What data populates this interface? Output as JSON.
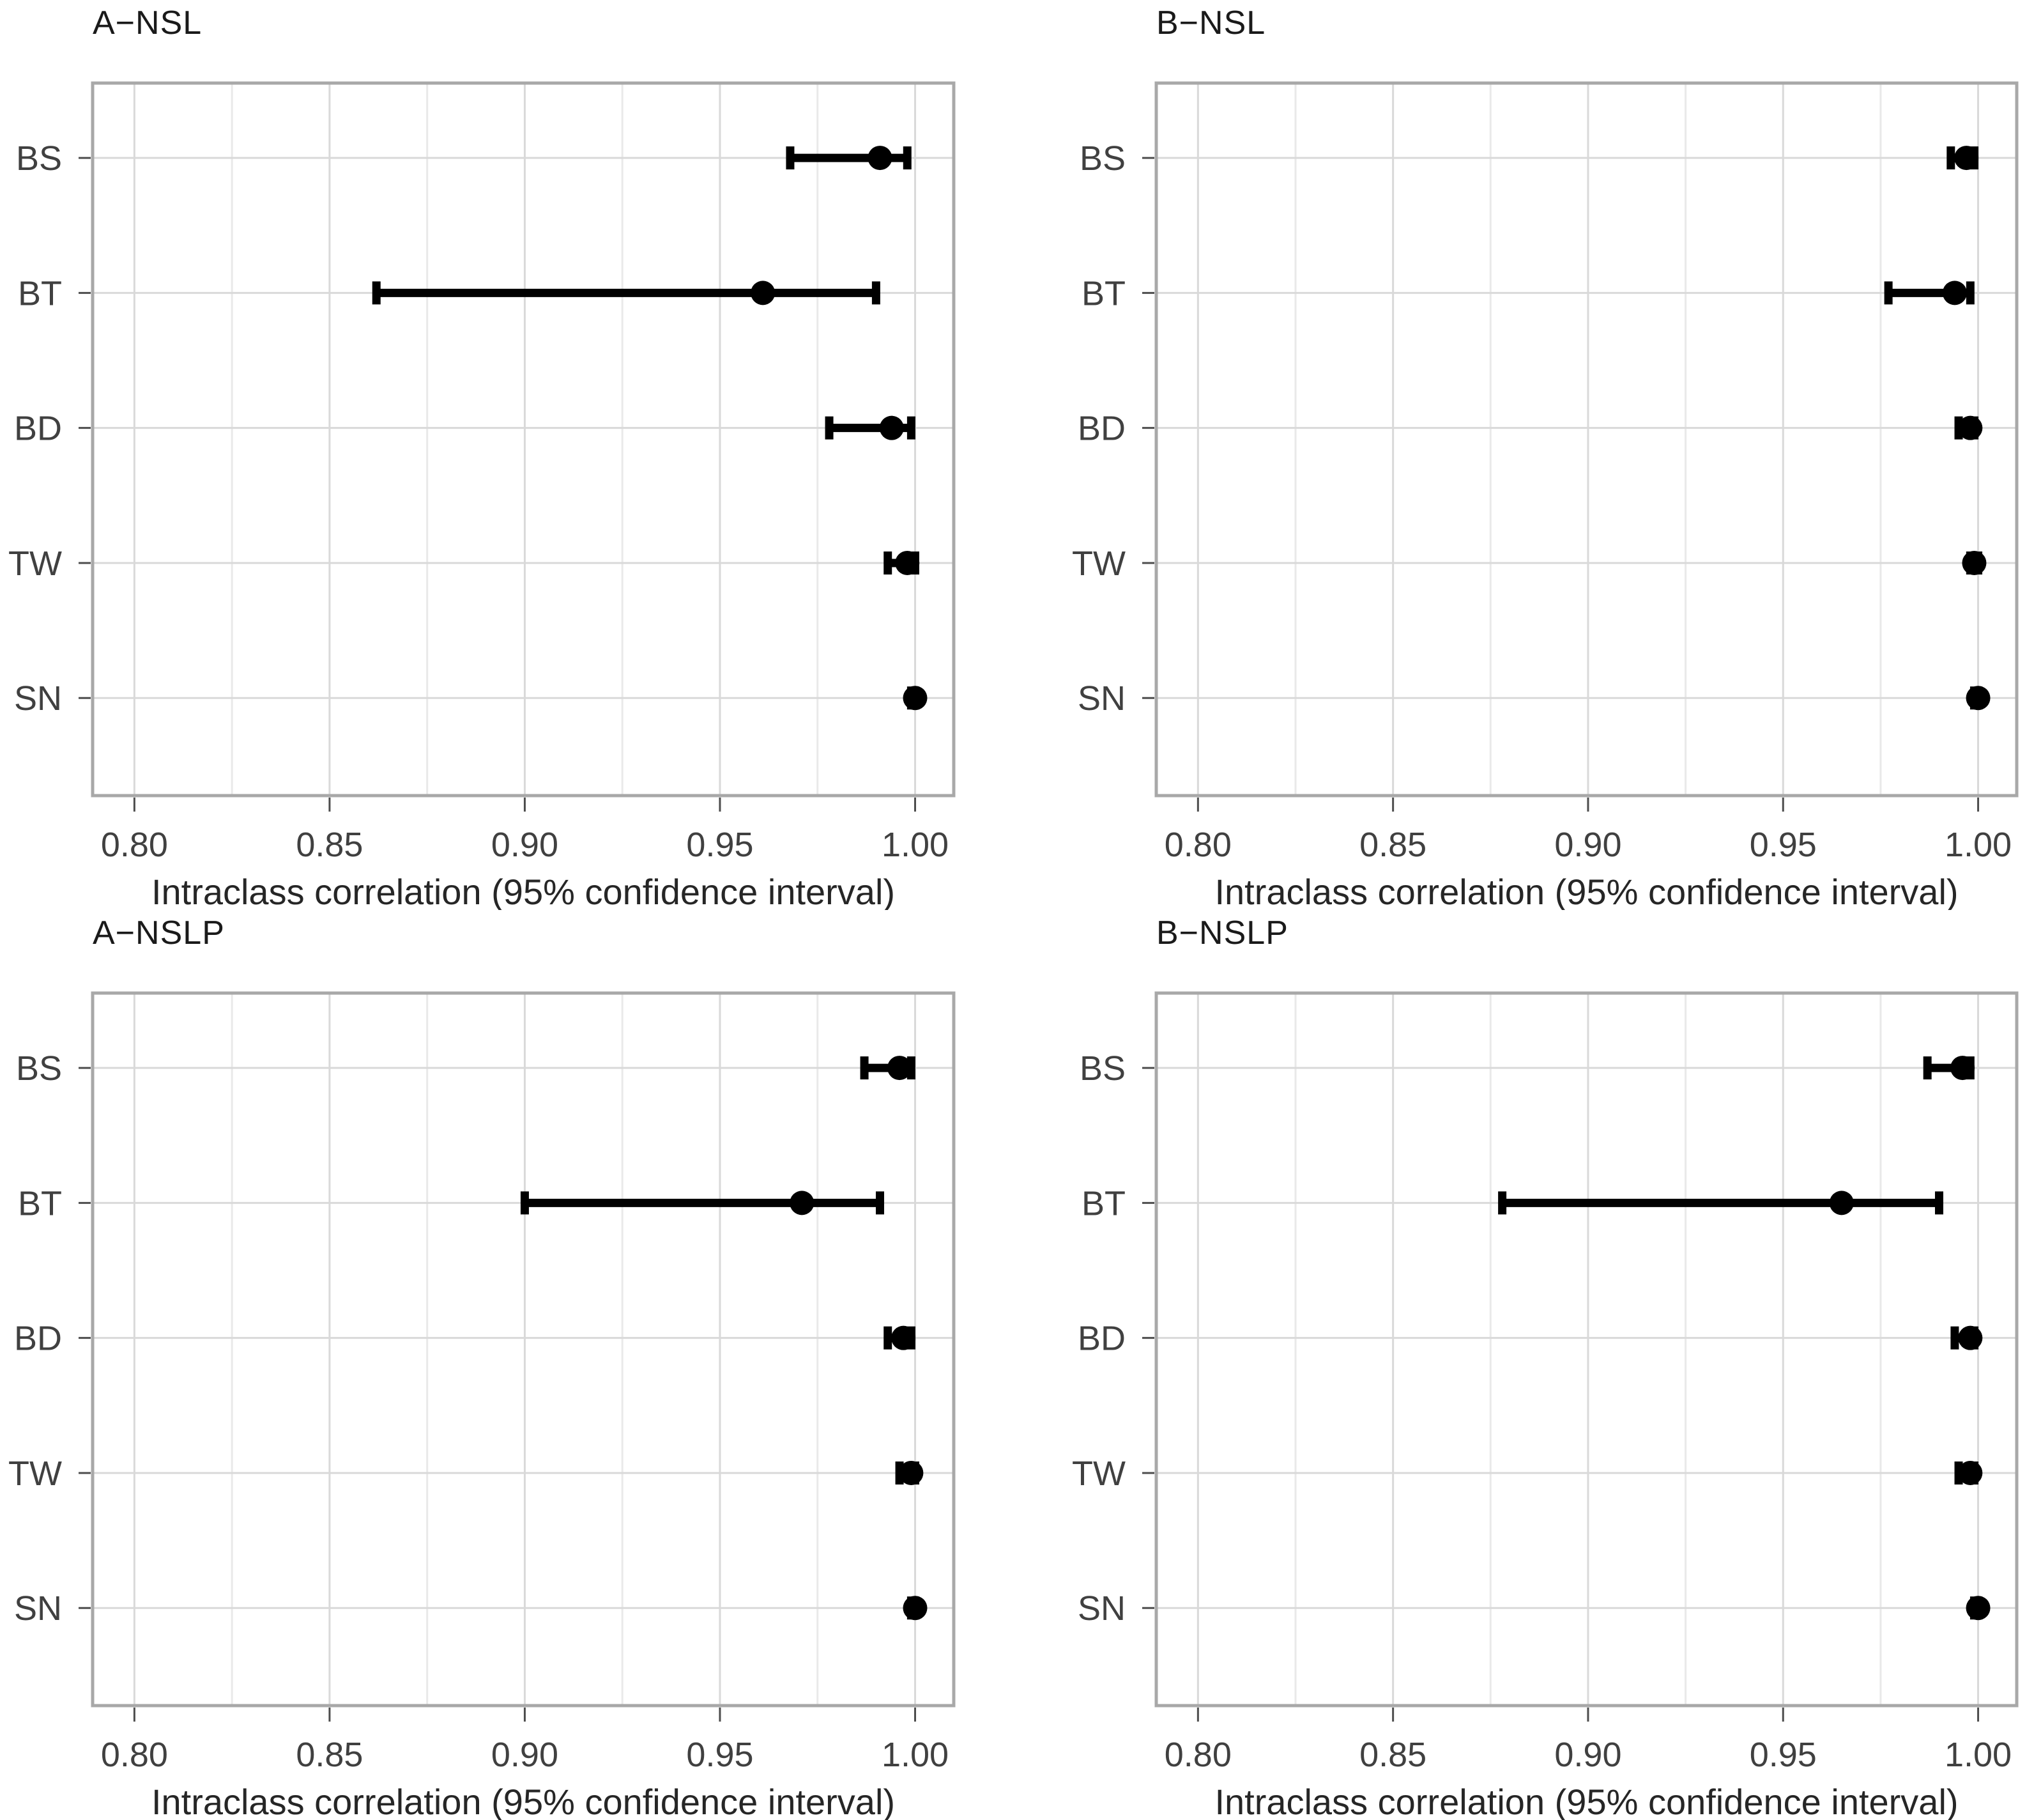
{
  "styles": {
    "background": "#ffffff",
    "marker_color": "#000000",
    "grid_major_color": "#d9d9d9",
    "grid_minor_color": "#e9e9e9",
    "panel_border_color": "#a8a8a8",
    "tick_mark_color": "#4d4d4d",
    "axis_text_color": "#404040",
    "panel_title_color": "#1a1a1a",
    "axis_title_color": "#262626"
  },
  "chart_data": [
    {
      "type": "scatter",
      "subtype": "dot-with-95ci-horizontal",
      "title": "A−NSL",
      "categories": [
        "BS",
        "BT",
        "BD",
        "TW",
        "SN"
      ],
      "points": [
        0.991,
        0.961,
        0.994,
        0.998,
        1.0
      ],
      "ci_low": [
        0.968,
        0.862,
        0.978,
        0.993,
        0.999
      ],
      "ci_high": [
        0.998,
        0.99,
        0.999,
        1.0,
        1.0
      ],
      "xlabel": "Intraclass correlation (95% confidence interval)",
      "x_tick_values": [
        0.8,
        0.85,
        0.9,
        0.95,
        1.0
      ],
      "x_tick_labels": [
        "0.80",
        "0.85",
        "0.90",
        "0.95",
        "1.00"
      ],
      "x_minor_ticks": [
        0.825,
        0.875,
        0.925,
        0.975
      ],
      "xlim": [
        0.7893,
        1.0099
      ],
      "grid": true,
      "legend": false
    },
    {
      "type": "scatter",
      "subtype": "dot-with-95ci-horizontal",
      "title": "B−NSL",
      "categories": [
        "BS",
        "BT",
        "BD",
        "TW",
        "SN"
      ],
      "points": [
        0.997,
        0.994,
        0.998,
        0.999,
        1.0
      ],
      "ci_low": [
        0.993,
        0.977,
        0.995,
        0.998,
        0.999
      ],
      "ci_high": [
        0.999,
        0.998,
        0.999,
        1.0,
        1.0
      ],
      "xlabel": "Intraclass correlation (95% confidence interval)",
      "x_tick_values": [
        0.8,
        0.85,
        0.9,
        0.95,
        1.0
      ],
      "x_tick_labels": [
        "0.80",
        "0.85",
        "0.90",
        "0.95",
        "1.00"
      ],
      "x_minor_ticks": [
        0.825,
        0.875,
        0.925,
        0.975
      ],
      "xlim": [
        0.7893,
        1.0099
      ],
      "grid": true,
      "legend": false
    },
    {
      "type": "scatter",
      "subtype": "dot-with-95ci-horizontal",
      "title": "A−NSLP",
      "categories": [
        "BS",
        "BT",
        "BD",
        "TW",
        "SN"
      ],
      "points": [
        0.996,
        0.971,
        0.997,
        0.999,
        1.0
      ],
      "ci_low": [
        0.987,
        0.9,
        0.993,
        0.996,
        0.999
      ],
      "ci_high": [
        0.999,
        0.991,
        0.999,
        1.0,
        1.0
      ],
      "xlabel": "Intraclass correlation (95% confidence interval)",
      "x_tick_values": [
        0.8,
        0.85,
        0.9,
        0.95,
        1.0
      ],
      "x_tick_labels": [
        "0.80",
        "0.85",
        "0.90",
        "0.95",
        "1.00"
      ],
      "x_minor_ticks": [
        0.825,
        0.875,
        0.925,
        0.975
      ],
      "xlim": [
        0.7893,
        1.0099
      ],
      "grid": true,
      "legend": false
    },
    {
      "type": "scatter",
      "subtype": "dot-with-95ci-horizontal",
      "title": "B−NSLP",
      "categories": [
        "BS",
        "BT",
        "BD",
        "TW",
        "SN"
      ],
      "points": [
        0.996,
        0.965,
        0.998,
        0.998,
        1.0
      ],
      "ci_low": [
        0.987,
        0.878,
        0.994,
        0.995,
        0.999
      ],
      "ci_high": [
        0.998,
        0.99,
        0.999,
        0.999,
        1.0
      ],
      "xlabel": "Intraclass correlation (95% confidence interval)",
      "x_tick_values": [
        0.8,
        0.85,
        0.9,
        0.95,
        1.0
      ],
      "x_tick_labels": [
        "0.80",
        "0.85",
        "0.90",
        "0.95",
        "1.00"
      ],
      "x_minor_ticks": [
        0.825,
        0.875,
        0.925,
        0.975
      ],
      "xlim": [
        0.7893,
        1.0099
      ],
      "grid": true,
      "legend": false
    }
  ]
}
